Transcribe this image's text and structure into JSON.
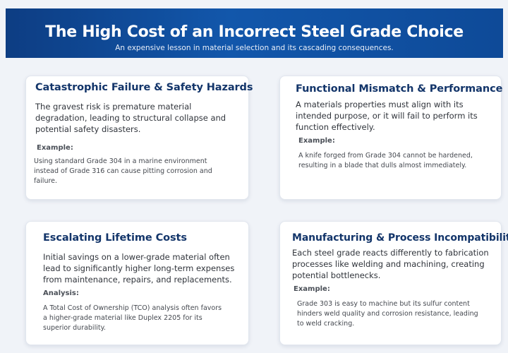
{
  "header": {
    "title": "The High Cost of an Incorrect Steel Grade Choice",
    "subtitle": "An expensive lesson in material selection and its cascading consequences."
  },
  "cards": [
    {
      "title": "Catastrophic Failure & Safety Hazards",
      "body": "The gravest risk is premature material degradation, leading to structural collapse and potential safety disasters.",
      "example_label": "Example:",
      "example_text": "Using standard Grade 304 in a marine environment instead of Grade 316 can cause pitting corrosion and failure."
    },
    {
      "title": "Functional Mismatch & Performance",
      "body": "A materials properties must align with its intended purpose, or it will fail to perform its function effectively.",
      "example_label": "Example:",
      "example_text": "A knife forged from Grade 304 cannot be hardened, resulting in a blade that dulls almost immediately."
    },
    {
      "title": "Escalating Lifetime Costs",
      "body": "Initial savings on a lower-grade material often lead to significantly higher long-term expenses from maintenance, repairs, and replacements.",
      "example_label": "Analysis:",
      "example_text": "A Total Cost of Ownership (TCO) analysis often favors a higher-grade material like Duplex 2205 for its superior durability."
    },
    {
      "title": "Manufacturing & Process Incompatibility",
      "body": "Each steel grade reacts differently to fabrication processes like welding and machining, creating potential bottlenecks.",
      "example_label": "Example:",
      "example_text": "Grade 303 is easy to machine but its sulfur content hinders weld quality and corrosion resistance, leading to weld cracking."
    }
  ]
}
